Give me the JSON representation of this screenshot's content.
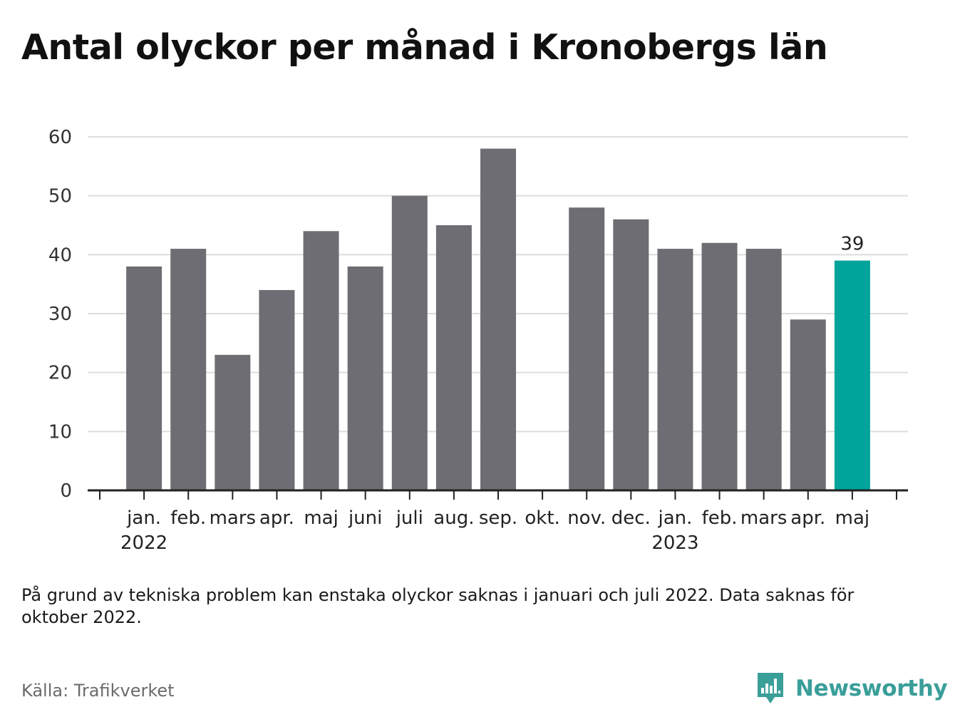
{
  "title": "Antal olyckor per månad i Kronobergs län",
  "note": "På grund av tekniska problem kan enstaka olyckor saknas i januari och juli 2022. Data saknas för oktober 2022.",
  "source": "Källa: Trafikverket",
  "brand": {
    "name": "Newsworthy",
    "color": "#3a9e99",
    "icon": "newsworthy-logo-icon"
  },
  "chart_data": {
    "type": "bar",
    "categories": [
      "jan.",
      "feb.",
      "mars",
      "apr.",
      "maj",
      "juni",
      "juli",
      "aug.",
      "sep.",
      "okt.",
      "nov.",
      "dec.",
      "jan.",
      "feb.",
      "mars",
      "apr.",
      "maj"
    ],
    "year_labels": [
      {
        "index": 0,
        "label": "2022"
      },
      {
        "index": 12,
        "label": "2023"
      }
    ],
    "values": [
      38,
      41,
      23,
      34,
      44,
      38,
      50,
      45,
      58,
      null,
      48,
      46,
      41,
      42,
      41,
      29,
      39
    ],
    "highlight_index": 16,
    "highlight_label": "39",
    "yticks": [
      0,
      10,
      20,
      30,
      40,
      50,
      60
    ],
    "ylim": [
      0,
      60
    ],
    "grid": true,
    "colors": {
      "bar": "#6e6d73",
      "highlight": "#00a49a",
      "grid": "#dddddd",
      "axis": "#222222"
    }
  }
}
